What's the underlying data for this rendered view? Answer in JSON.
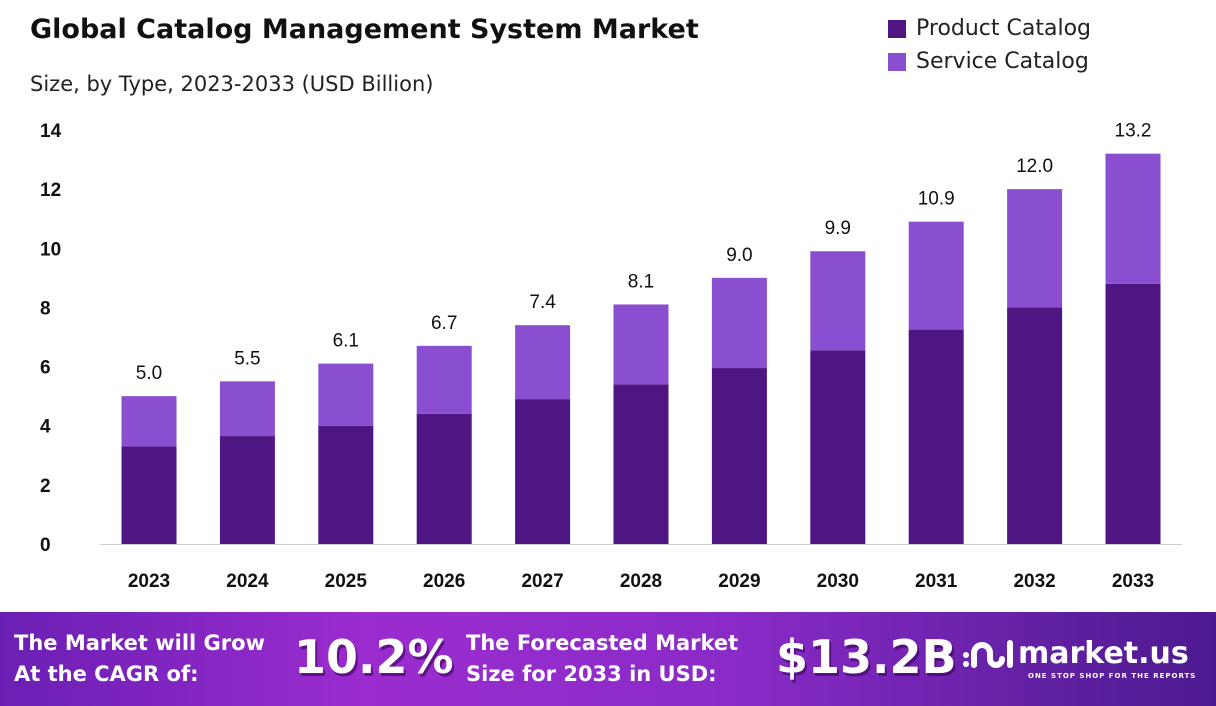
{
  "chart_data": {
    "type": "bar",
    "stacked": true,
    "title": "Global Catalog Management System Market",
    "subtitle": "Size, by Type, 2023-2033 (USD Billion)",
    "categories": [
      "2023",
      "2024",
      "2025",
      "2026",
      "2027",
      "2028",
      "2029",
      "2030",
      "2031",
      "2032",
      "2033"
    ],
    "series": [
      {
        "name": "Product Catalog",
        "color": "#4e1583",
        "values": [
          3.3,
          3.65,
          4.0,
          4.4,
          4.9,
          5.4,
          5.95,
          6.55,
          7.25,
          8.0,
          8.8
        ]
      },
      {
        "name": "Service Catalog",
        "color": "#8a4fd0",
        "values": [
          1.7,
          1.85,
          2.1,
          2.3,
          2.5,
          2.7,
          3.05,
          3.35,
          3.65,
          4.0,
          4.4
        ]
      }
    ],
    "totals": [
      "5.0",
      "5.5",
      "6.1",
      "6.7",
      "7.4",
      "8.1",
      "9.0",
      "9.9",
      "10.9",
      "12.0",
      "13.2"
    ],
    "ylim": [
      0,
      14
    ],
    "yticks": [
      "0",
      "2",
      "4",
      "6",
      "8",
      "10",
      "12",
      "14"
    ],
    "grid": false,
    "legend": "top-right"
  },
  "footer": {
    "cagr_label_1": "The Market will Grow",
    "cagr_label_2": "At the CAGR of:",
    "cagr_value": "10.2%",
    "forecast_label_1": "The Forecasted Market",
    "forecast_label_2": "Size for 2033 in USD:",
    "forecast_value": "$13.2B",
    "logo_name": "market.us",
    "logo_tagline": "ONE STOP SHOP FOR THE REPORTS"
  }
}
